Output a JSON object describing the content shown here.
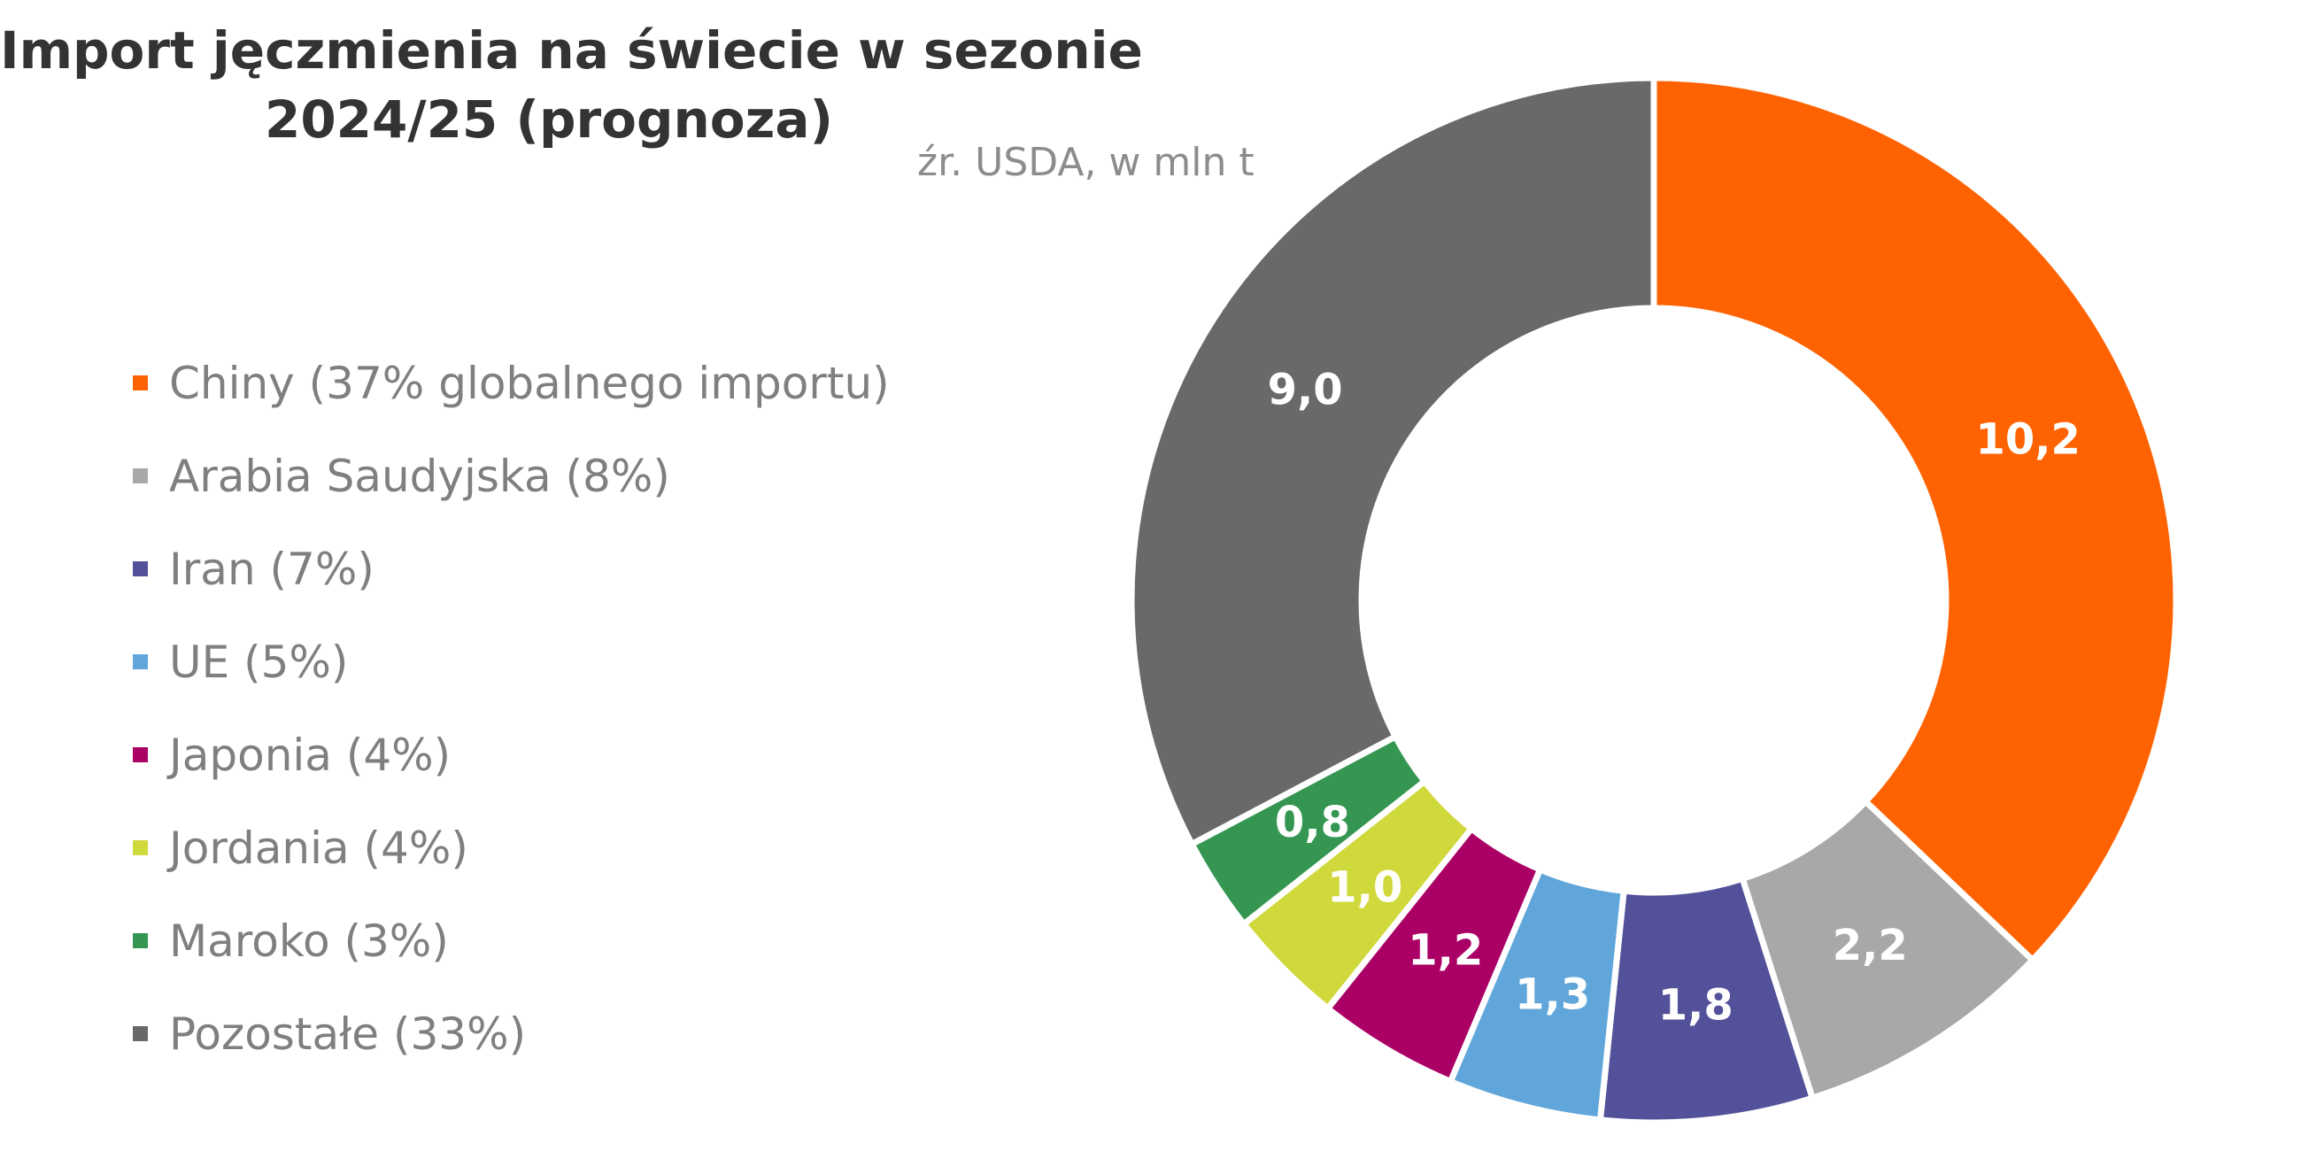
{
  "chart_data": {
    "type": "pie",
    "title_lines": [
      "Import jęczmienia na świecie w sezonie",
      "2024/25 (prognoza)"
    ],
    "subtitle": "źr. USDA, w mln t",
    "legend_position": "left",
    "categories": [
      "Chiny (37% globalnego importu)",
      "Arabia Saudyjska (8%)",
      "Iran (7%)",
      "UE (5%)",
      "Japonia (4%)",
      "Jordania (4%)",
      "Maroko (3%)",
      "Pozostałe (33%)"
    ],
    "values": [
      10.2,
      2.2,
      1.8,
      1.3,
      1.2,
      1.0,
      0.8,
      9.0
    ],
    "value_labels": [
      "10,2",
      "2,2",
      "1,8",
      "1,3",
      "1,2",
      "1,0",
      "0,8",
      "9,0"
    ],
    "colors": [
      "#ff6200",
      "#a8a8a8",
      "#525199",
      "#60a6da",
      "#aa0066",
      "#d0d93c",
      "#349651",
      "#696969"
    ]
  }
}
